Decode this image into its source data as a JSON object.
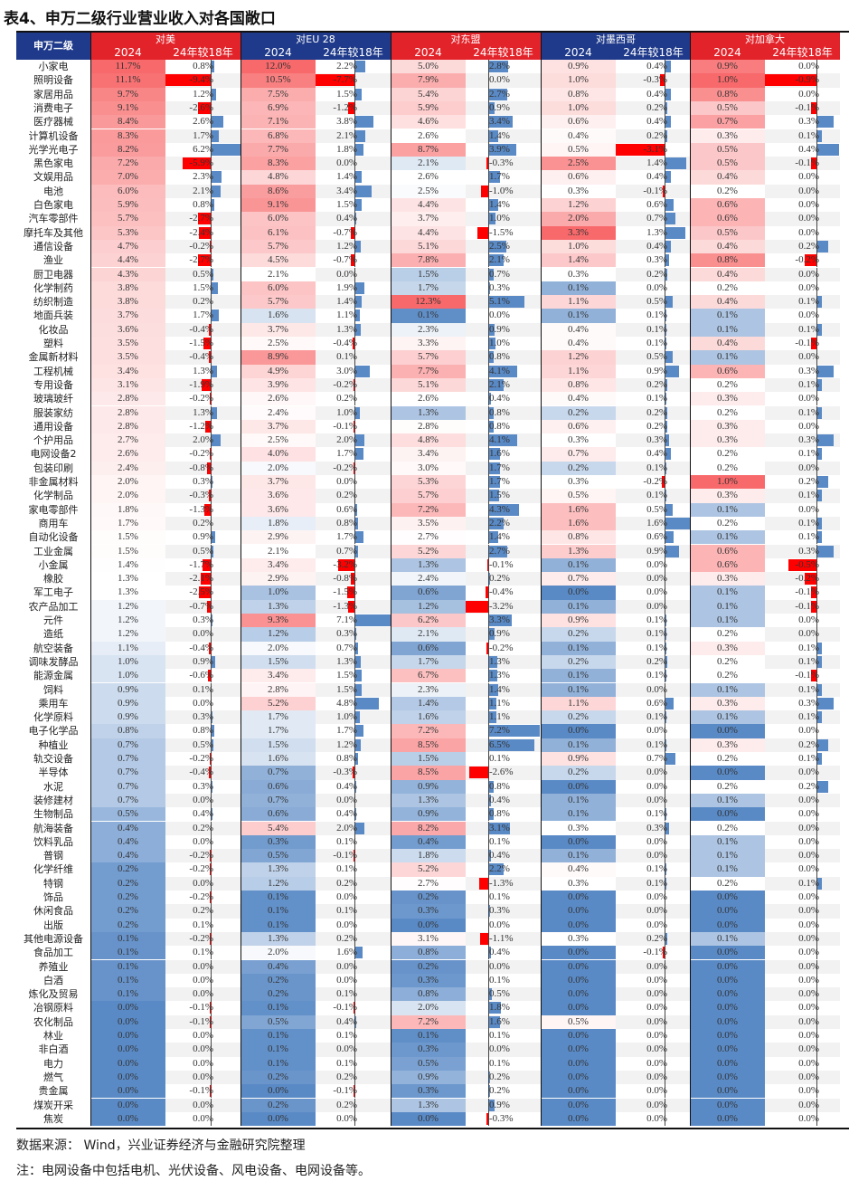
{
  "title": "表4、申万二级行业营业收入对各国敞口",
  "header": {
    "first_col": "申万二级",
    "groups": [
      "对美",
      "对EU 28",
      "对东盟",
      "对墨西哥",
      "对加拿大"
    ],
    "sub": [
      "2024",
      "24年较18年"
    ]
  },
  "colors": {
    "header_red": "#E3232A",
    "header_navy": "#1F3A8A",
    "heat_low": "#5A8AC6",
    "heat_mid": "#FFFFFF",
    "heat_high": "#F8696B",
    "bar_pos": "#5A8AC6",
    "bar_neg": "#FF0000"
  },
  "rows": [
    [
      "小家电",
      11.7,
      0.8,
      12.0,
      2.2,
      5.0,
      2.8,
      0.9,
      0.4,
      0.9,
      0.0
    ],
    [
      "照明设备",
      11.1,
      -9.4,
      10.5,
      -7.7,
      7.9,
      0.0,
      1.0,
      -0.3,
      1.0,
      -0.9
    ],
    [
      "家居用品",
      9.7,
      1.2,
      7.5,
      1.5,
      5.4,
      2.7,
      0.8,
      0.4,
      0.8,
      0.0
    ],
    [
      "消费电子",
      9.1,
      -2.6,
      6.9,
      -1.2,
      5.9,
      0.9,
      1.0,
      0.2,
      0.5,
      -0.1
    ],
    [
      "医疗器械",
      8.4,
      2.6,
      7.1,
      3.8,
      4.6,
      3.4,
      0.6,
      0.4,
      0.7,
      0.3
    ],
    [
      "计算机设备",
      8.3,
      1.7,
      6.8,
      2.1,
      2.6,
      1.4,
      0.4,
      0.2,
      0.3,
      0.1
    ],
    [
      "光学光电子",
      8.2,
      6.2,
      7.7,
      1.8,
      8.7,
      3.9,
      0.5,
      -3.1,
      0.5,
      0.4
    ],
    [
      "黑色家电",
      7.2,
      -5.9,
      8.3,
      0.0,
      2.1,
      -0.3,
      2.5,
      1.4,
      0.5,
      -0.1
    ],
    [
      "文娱用品",
      7.0,
      2.3,
      4.8,
      1.4,
      2.6,
      1.7,
      0.6,
      0.4,
      0.4,
      0.0
    ],
    [
      "电池",
      6.0,
      2.1,
      8.6,
      3.4,
      2.5,
      -1.0,
      0.3,
      -0.1,
      0.2,
      0.0
    ],
    [
      "白色家电",
      5.9,
      0.8,
      9.1,
      1.5,
      4.4,
      1.4,
      1.2,
      0.6,
      0.6,
      0.0
    ],
    [
      "汽车零部件",
      5.7,
      -2.7,
      6.0,
      0.4,
      3.7,
      1.0,
      2.0,
      0.7,
      0.6,
      0.0
    ],
    [
      "摩托车及其他",
      5.3,
      -2.4,
      6.1,
      -0.7,
      4.4,
      -1.5,
      3.3,
      1.3,
      0.5,
      0.0
    ],
    [
      "通信设备",
      4.7,
      -0.2,
      5.7,
      1.2,
      5.1,
      2.5,
      1.0,
      0.4,
      0.4,
      0.2
    ],
    [
      "渔业",
      4.4,
      -2.7,
      4.5,
      -0.7,
      7.8,
      2.1,
      1.4,
      0.3,
      0.8,
      -0.2
    ],
    [
      "厨卫电器",
      4.3,
      0.5,
      2.1,
      0.0,
      1.5,
      0.7,
      0.3,
      0.2,
      0.4,
      0.0
    ],
    [
      "化学制药",
      3.8,
      1.5,
      6.0,
      1.9,
      1.7,
      0.3,
      0.1,
      0.0,
      0.2,
      0.0
    ],
    [
      "纺织制造",
      3.8,
      0.2,
      5.7,
      1.4,
      12.3,
      5.1,
      1.1,
      0.5,
      0.4,
      0.1
    ],
    [
      "地面兵装",
      3.7,
      1.7,
      1.6,
      1.1,
      0.1,
      0.0,
      0.1,
      0.1,
      0.1,
      0.0
    ],
    [
      "化妆品",
      3.6,
      -0.4,
      3.7,
      1.3,
      2.3,
      0.9,
      0.4,
      0.1,
      0.1,
      0.1
    ],
    [
      "塑料",
      3.5,
      -1.5,
      2.5,
      -0.4,
      3.3,
      1.0,
      0.4,
      0.1,
      0.4,
      -0.1
    ],
    [
      "金属新材料",
      3.5,
      -0.4,
      8.9,
      0.1,
      5.7,
      0.8,
      1.2,
      0.5,
      0.1,
      0.0
    ],
    [
      "工程机械",
      3.4,
      1.3,
      4.9,
      3.0,
      7.7,
      4.1,
      1.1,
      0.9,
      0.6,
      0.3
    ],
    [
      "专用设备",
      3.1,
      -1.9,
      3.9,
      -0.2,
      5.1,
      2.1,
      0.8,
      0.2,
      0.2,
      0.1
    ],
    [
      "玻璃玻纤",
      2.8,
      -0.2,
      2.6,
      0.2,
      2.6,
      0.4,
      0.4,
      0.1,
      0.3,
      0.0
    ],
    [
      "服装家纺",
      2.8,
      1.3,
      2.4,
      1.0,
      1.3,
      0.8,
      0.2,
      0.2,
      0.2,
      0.1
    ],
    [
      "通用设备",
      2.8,
      -1.2,
      3.7,
      -0.1,
      2.8,
      0.8,
      0.6,
      0.2,
      0.3,
      0.0
    ],
    [
      "个护用品",
      2.7,
      2.0,
      2.5,
      2.0,
      4.8,
      4.1,
      0.3,
      0.3,
      0.3,
      0.3
    ],
    [
      "电网设备2",
      2.6,
      -0.2,
      4.0,
      1.7,
      3.4,
      1.6,
      0.7,
      0.4,
      0.2,
      0.1
    ],
    [
      "包装印刷",
      2.4,
      -0.8,
      2.0,
      -0.2,
      3.0,
      1.7,
      0.2,
      0.1,
      0.2,
      0.0
    ],
    [
      "非金属材料",
      2.0,
      0.3,
      3.7,
      0.0,
      5.3,
      1.7,
      0.3,
      -0.2,
      1.0,
      0.2
    ],
    [
      "化学制品",
      2.0,
      -0.3,
      3.6,
      0.2,
      5.7,
      1.5,
      0.5,
      0.1,
      0.3,
      0.1
    ],
    [
      "家电零部件",
      1.8,
      -1.3,
      3.6,
      0.6,
      7.2,
      4.3,
      1.6,
      0.5,
      0.1,
      0.0
    ],
    [
      "商用车",
      1.7,
      0.2,
      1.8,
      0.8,
      3.5,
      2.2,
      1.6,
      1.6,
      0.2,
      0.1
    ],
    [
      "自动化设备",
      1.5,
      0.9,
      2.9,
      1.7,
      2.7,
      1.4,
      0.8,
      0.6,
      0.1,
      0.1
    ],
    [
      "工业金属",
      1.5,
      0.5,
      2.1,
      0.7,
      5.2,
      2.7,
      1.3,
      0.9,
      0.6,
      0.3
    ],
    [
      "小金属",
      1.4,
      -1.7,
      3.4,
      -3.2,
      1.3,
      -0.1,
      0.1,
      0.0,
      0.6,
      -0.5
    ],
    [
      "橡胶",
      1.3,
      -2.1,
      2.9,
      -0.8,
      2.4,
      0.2,
      0.7,
      0.0,
      0.3,
      -0.2
    ],
    [
      "军工电子",
      1.3,
      -2.5,
      1.0,
      -1.5,
      0.6,
      -0.4,
      0.0,
      0.0,
      0.1,
      -0.1
    ],
    [
      "农产品加工",
      1.2,
      -0.7,
      1.3,
      -1.3,
      1.2,
      -3.2,
      0.1,
      0.0,
      0.1,
      -0.1
    ],
    [
      "元件",
      1.2,
      0.3,
      9.3,
      7.1,
      6.2,
      3.3,
      0.9,
      0.1,
      0.1,
      0.0
    ],
    [
      "造纸",
      1.2,
      0.0,
      1.2,
      0.3,
      2.1,
      0.9,
      0.2,
      0.1,
      0.2,
      0.0
    ],
    [
      "航空装备",
      1.1,
      -0.4,
      2.0,
      0.7,
      0.6,
      -0.2,
      0.1,
      0.1,
      0.3,
      0.1
    ],
    [
      "调味发酵品",
      1.0,
      0.9,
      1.5,
      1.3,
      1.7,
      1.3,
      0.2,
      0.2,
      0.2,
      0.1
    ],
    [
      "能源金属",
      1.0,
      -0.6,
      3.4,
      1.5,
      6.7,
      1.3,
      0.1,
      0.1,
      0.2,
      -0.1
    ],
    [
      "饲料",
      0.9,
      0.1,
      2.8,
      1.5,
      2.3,
      1.4,
      0.1,
      0.0,
      0.1,
      0.1
    ],
    [
      "乘用车",
      0.9,
      0.0,
      5.2,
      4.8,
      1.4,
      1.1,
      1.1,
      0.6,
      0.3,
      0.3
    ],
    [
      "化学原料",
      0.9,
      0.3,
      1.7,
      1.0,
      1.6,
      1.1,
      0.2,
      0.1,
      0.1,
      0.1
    ],
    [
      "电子化学品",
      0.8,
      0.8,
      1.7,
      1.7,
      7.2,
      7.2,
      0.0,
      0.0,
      0.0,
      0.0
    ],
    [
      "种植业",
      0.7,
      0.5,
      1.5,
      1.2,
      8.5,
      6.5,
      0.1,
      0.1,
      0.3,
      0.2
    ],
    [
      "轨交设备",
      0.7,
      -0.2,
      1.6,
      0.8,
      1.5,
      0.1,
      0.9,
      0.7,
      0.2,
      0.1
    ],
    [
      "半导体",
      0.7,
      -0.4,
      0.7,
      -0.3,
      8.5,
      -2.6,
      0.2,
      0.0,
      0.0,
      0.0
    ],
    [
      "水泥",
      0.7,
      0.3,
      0.6,
      0.4,
      0.9,
      0.8,
      0.0,
      0.0,
      0.2,
      0.2
    ],
    [
      "装修建材",
      0.7,
      0.0,
      0.7,
      0.0,
      1.3,
      0.4,
      0.1,
      0.0,
      0.1,
      0.0
    ],
    [
      "生物制品",
      0.5,
      0.4,
      0.6,
      0.4,
      0.9,
      0.8,
      0.1,
      0.1,
      0.0,
      0.0
    ],
    [
      "航海装备",
      0.4,
      0.2,
      5.4,
      2.0,
      8.2,
      3.1,
      0.3,
      0.3,
      0.2,
      0.0
    ],
    [
      "饮料乳品",
      0.4,
      0.0,
      0.3,
      0.1,
      0.4,
      0.1,
      0.0,
      0.0,
      0.1,
      0.0
    ],
    [
      "普钢",
      0.4,
      -0.2,
      0.5,
      -0.1,
      1.8,
      0.4,
      0.1,
      0.0,
      0.1,
      0.0
    ],
    [
      "化学纤维",
      0.2,
      -0.2,
      1.3,
      0.1,
      5.2,
      2.2,
      0.4,
      0.1,
      0.1,
      0.0
    ],
    [
      "特钢",
      0.2,
      0.0,
      1.2,
      0.2,
      2.7,
      -1.3,
      0.3,
      0.1,
      0.2,
      0.1
    ],
    [
      "饰品",
      0.2,
      -0.2,
      0.1,
      0.0,
      0.2,
      0.1,
      0.0,
      0.0,
      0.0,
      0.0
    ],
    [
      "休闲食品",
      0.2,
      0.2,
      0.1,
      0.1,
      0.3,
      0.3,
      0.0,
      0.0,
      0.0,
      0.0
    ],
    [
      "出版",
      0.2,
      0.1,
      0.1,
      0.0,
      0.0,
      0.0,
      0.0,
      0.0,
      0.0,
      0.0
    ],
    [
      "其他电源设备",
      0.1,
      -0.2,
      1.3,
      0.2,
      3.1,
      -1.1,
      0.3,
      0.2,
      0.1,
      0.0
    ],
    [
      "食品加工",
      0.1,
      0.1,
      2.0,
      1.6,
      0.8,
      0.4,
      0.0,
      -0.1,
      0.0,
      0.0
    ],
    [
      "养殖业",
      0.1,
      0.0,
      0.4,
      0.0,
      0.2,
      0.0,
      0.0,
      0.0,
      0.0,
      0.0
    ],
    [
      "白酒",
      0.1,
      0.0,
      0.2,
      0.0,
      0.3,
      0.1,
      0.0,
      0.0,
      0.0,
      0.0
    ],
    [
      "炼化及贸易",
      0.1,
      0.0,
      0.2,
      0.1,
      0.8,
      0.5,
      0.0,
      0.0,
      0.0,
      0.0
    ],
    [
      "冶钢原料",
      0.0,
      -0.1,
      0.1,
      -0.1,
      2.0,
      1.8,
      0.0,
      0.0,
      0.0,
      0.0
    ],
    [
      "农化制品",
      0.0,
      -0.1,
      0.5,
      0.4,
      7.2,
      1.6,
      0.5,
      0.0,
      0.0,
      0.0
    ],
    [
      "林业",
      0.0,
      0.0,
      0.1,
      0.1,
      0.1,
      0.1,
      0.0,
      0.0,
      0.0,
      0.0
    ],
    [
      "非白酒",
      0.0,
      0.0,
      0.1,
      0.0,
      0.3,
      0.0,
      0.0,
      0.0,
      0.0,
      0.0
    ],
    [
      "电力",
      0.0,
      0.0,
      0.1,
      0.1,
      0.5,
      0.1,
      0.0,
      0.0,
      0.0,
      0.0
    ],
    [
      "燃气",
      0.0,
      0.0,
      0.2,
      0.2,
      0.9,
      0.2,
      0.0,
      0.0,
      0.0,
      0.0
    ],
    [
      "贵金属",
      0.0,
      -0.1,
      0.0,
      -0.1,
      0.3,
      0.2,
      0.0,
      0.0,
      0.0,
      0.0
    ],
    [
      "煤炭开采",
      0.0,
      0.0,
      0.2,
      0.2,
      1.3,
      0.9,
      0.0,
      0.0,
      0.0,
      0.0
    ],
    [
      "焦炭",
      0.0,
      0.0,
      0.0,
      0.0,
      0.0,
      -0.3,
      0.0,
      0.0,
      0.0,
      0.0
    ]
  ],
  "footer": {
    "source": "数据来源：  Wind，兴业证券经济与金融研究院整理",
    "note": "注：电网设备中包括电机、光伏设备、风电设备、电网设备等。"
  }
}
